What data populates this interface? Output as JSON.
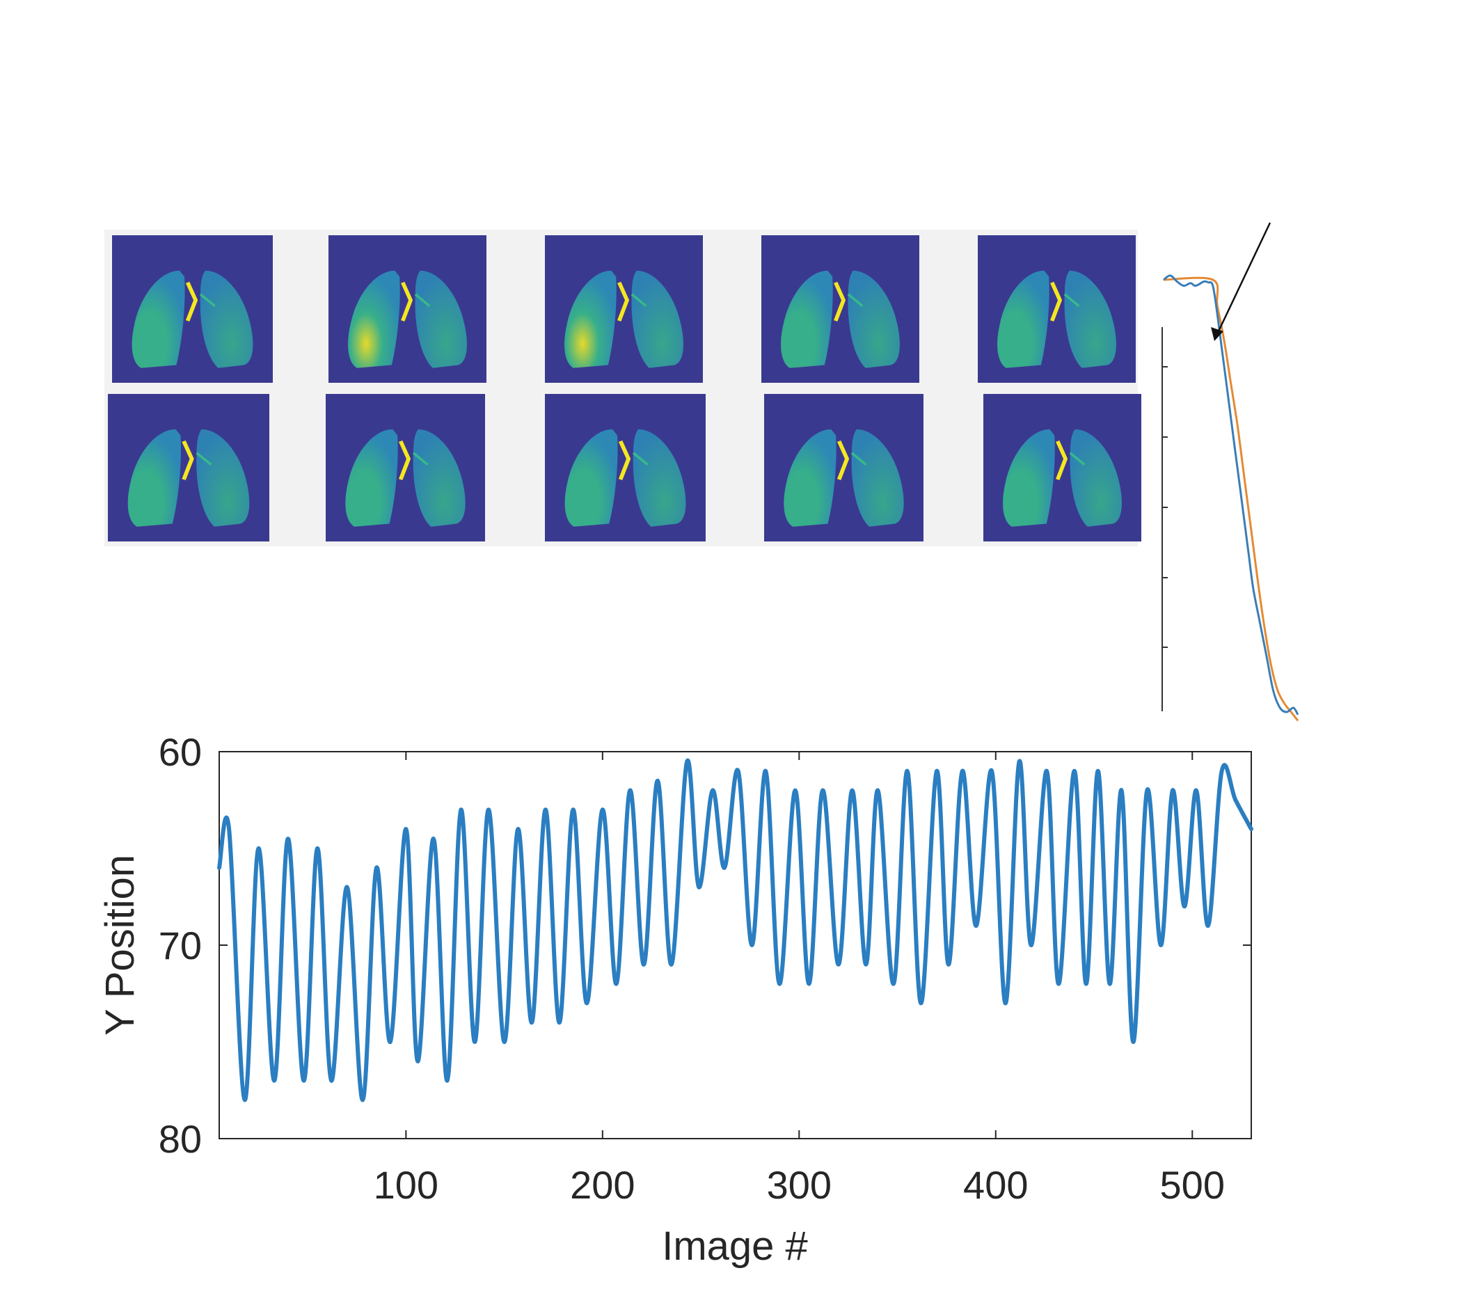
{
  "thumbnail_grid": {
    "rows": 2,
    "cols": 5,
    "colormap": [
      "#3a3990",
      "#2c8fb9",
      "#37b98a",
      "#f4e721"
    ]
  },
  "chart_data": [
    {
      "type": "line",
      "xlabel": "Image #",
      "ylabel": "Y Position",
      "xlim": [
        5,
        530
      ],
      "ylim": [
        80,
        60
      ],
      "y_reversed": true,
      "xticks": [
        100,
        200,
        300,
        400,
        500
      ],
      "yticks": [
        60,
        70,
        80
      ],
      "grid": false,
      "series": [
        {
          "color": "#2a7ec1",
          "x": [
            5,
            10,
            18,
            25,
            33,
            40,
            48,
            55,
            62,
            70,
            78,
            85,
            92,
            100,
            106,
            114,
            121,
            128,
            135,
            142,
            150,
            157,
            164,
            171,
            178,
            185,
            192,
            200,
            207,
            214,
            221,
            228,
            235,
            243,
            249,
            256,
            262,
            269,
            276,
            283,
            290,
            298,
            305,
            312,
            320,
            327,
            334,
            340,
            348,
            355,
            362,
            370,
            376,
            383,
            390,
            398,
            405,
            412,
            418,
            426,
            432,
            440,
            446,
            452,
            458,
            464,
            470,
            477,
            484,
            490,
            496,
            502,
            508,
            515,
            522,
            530
          ],
          "y": [
            66,
            64,
            78,
            65,
            77,
            64.5,
            77,
            65,
            77,
            67,
            78,
            66,
            75,
            64,
            76,
            64.5,
            77,
            63,
            75,
            63,
            75,
            64,
            74,
            63,
            74,
            63,
            73,
            63,
            72,
            62,
            71,
            61.5,
            71,
            60.5,
            67,
            62,
            66,
            61,
            70,
            61,
            72,
            62,
            72,
            62,
            71,
            62,
            71,
            62,
            72,
            61,
            73,
            61,
            71,
            61,
            69,
            61,
            73,
            60.5,
            70,
            61,
            72,
            61,
            72,
            61,
            72,
            62,
            75,
            62,
            70,
            62,
            68,
            62,
            69,
            61,
            62.5,
            64
          ]
        }
      ]
    },
    {
      "type": "line",
      "annotation": "arrow",
      "series": [
        {
          "color": "#3a7db5",
          "x": [
            0,
            3,
            6,
            9,
            12,
            14,
            16,
            18,
            20,
            22,
            24,
            26,
            28,
            30,
            32,
            34,
            36,
            38,
            40,
            43,
            46,
            49,
            52,
            55,
            58,
            60
          ],
          "y": [
            1.0,
            1.05,
            0.98,
            0.93,
            0.96,
            0.93,
            0.95,
            0.98,
            0.97,
            0.93,
            0.6,
            0.2,
            -0.2,
            -0.6,
            -1.0,
            -1.4,
            -1.8,
            -2.2,
            -2.6,
            -3.0,
            -3.4,
            -3.8,
            -4.0,
            -4.05,
            -4.0,
            -4.08
          ]
        },
        {
          "color": "#e38a34",
          "x": [
            0,
            22,
            24,
            27,
            30,
            33,
            36,
            39,
            42,
            45,
            48,
            51,
            54,
            57,
            60
          ],
          "y": [
            1.0,
            1.0,
            0.7,
            0.3,
            -0.2,
            -0.7,
            -1.3,
            -1.9,
            -2.5,
            -3.05,
            -3.5,
            -3.8,
            -3.95,
            -4.05,
            -4.15
          ]
        }
      ]
    }
  ]
}
